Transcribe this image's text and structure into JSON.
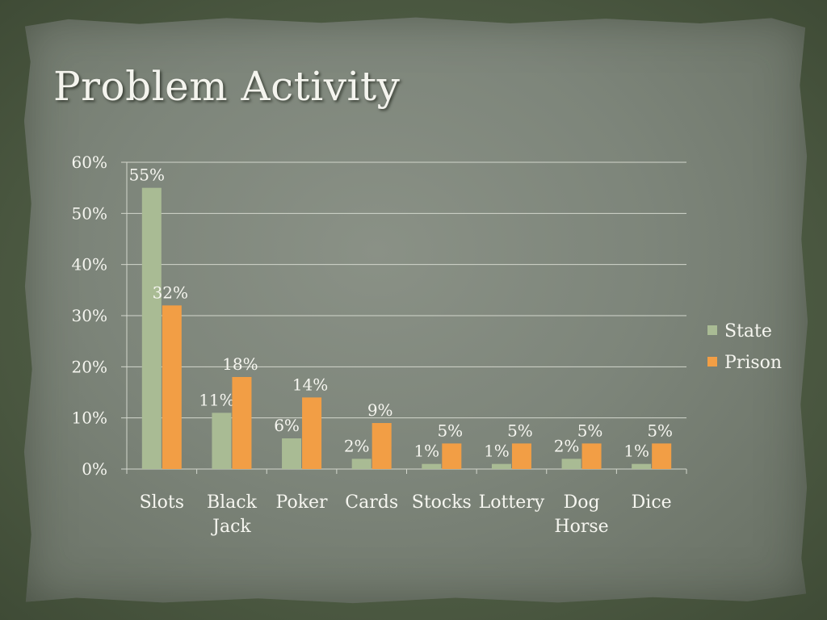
{
  "slide": {
    "title": "Problem Activity"
  },
  "colors": {
    "state": "#a9bb94",
    "prison": "#f29e45",
    "grid": "#d2d6cc",
    "text": "#f6f6f0"
  },
  "chart_data": {
    "type": "bar",
    "categories": [
      [
        "Slots"
      ],
      [
        "Black",
        "Jack"
      ],
      [
        "Poker"
      ],
      [
        "Cards"
      ],
      [
        "Stocks"
      ],
      [
        "Lottery"
      ],
      [
        "Dog",
        "Horse"
      ],
      [
        "Dice"
      ]
    ],
    "series": [
      {
        "name": "State",
        "values": [
          55,
          11,
          6,
          2,
          1,
          1,
          2,
          1
        ],
        "labels": [
          "55%",
          "11%",
          "6%",
          "2%",
          "1%",
          "1%",
          "2%",
          "1%"
        ]
      },
      {
        "name": "Prison",
        "values": [
          32,
          18,
          14,
          9,
          5,
          5,
          5,
          5
        ],
        "labels": [
          "32%",
          "18%",
          "14%",
          "9%",
          "5%",
          "5%",
          "5%",
          "5%"
        ]
      }
    ],
    "y_ticks": [
      "0%",
      "10%",
      "20%",
      "30%",
      "40%",
      "50%",
      "60%"
    ],
    "ylim": [
      0,
      60
    ],
    "grid": true,
    "legend_position": "right"
  }
}
